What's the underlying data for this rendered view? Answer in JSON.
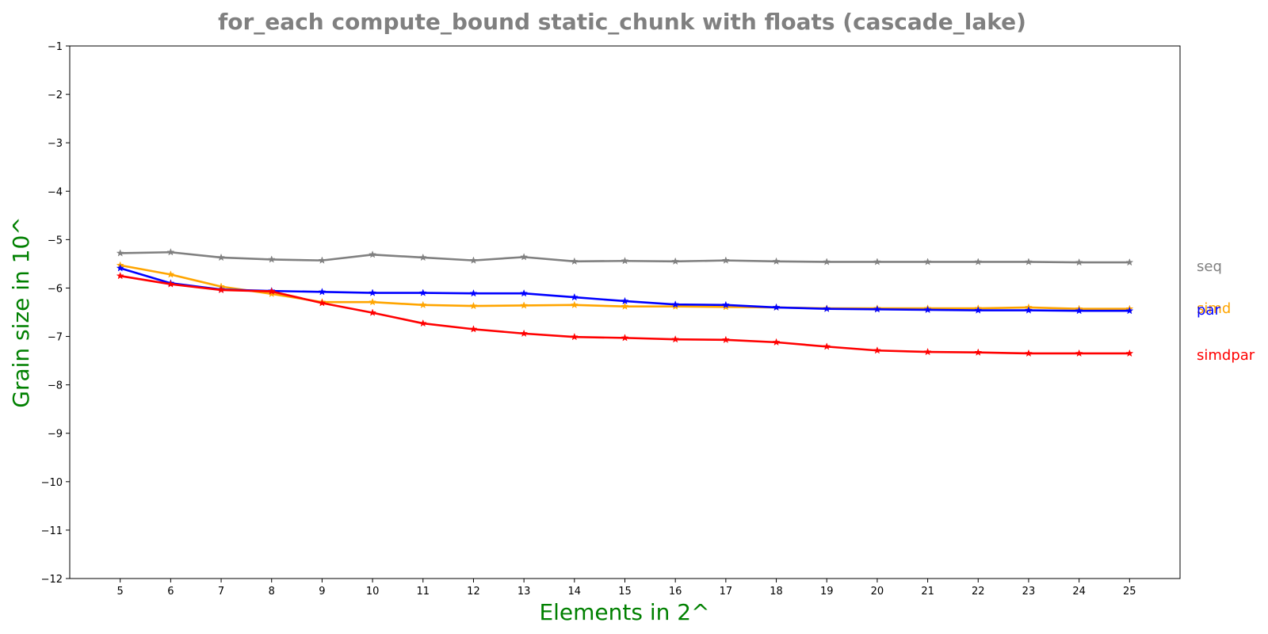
{
  "chart_data": {
    "type": "line",
    "title": "for_each compute_bound static_chunk with floats  (cascade_lake)",
    "xlabel": "Elements in 2^",
    "ylabel": "Grain size in 10^",
    "x": [
      5,
      6,
      7,
      8,
      9,
      10,
      11,
      12,
      13,
      14,
      15,
      16,
      17,
      18,
      19,
      20,
      21,
      22,
      23,
      24,
      25
    ],
    "xlim": [
      4,
      26
    ],
    "ylim": [
      -12,
      -1
    ],
    "xticks": [
      5,
      6,
      7,
      8,
      9,
      10,
      11,
      12,
      13,
      14,
      15,
      16,
      17,
      18,
      19,
      20,
      21,
      22,
      23,
      24,
      25
    ],
    "yticks": [
      -12,
      -11,
      -10,
      -9,
      -8,
      -7,
      -6,
      -5,
      -4,
      -3,
      -2,
      -1
    ],
    "grid": false,
    "legend_placement": "right-outside",
    "series": [
      {
        "name": "seq",
        "color": "#808080",
        "values": [
          -5.28,
          -5.26,
          -5.37,
          -5.41,
          -5.43,
          -5.31,
          -5.37,
          -5.43,
          -5.36,
          -5.45,
          -5.44,
          -5.45,
          -5.43,
          -5.45,
          -5.46,
          -5.46,
          -5.46,
          -5.46,
          -5.46,
          -5.47,
          -5.47
        ],
        "label_y": -5.55
      },
      {
        "name": "simd",
        "color": "#FFA500",
        "values": [
          -5.53,
          -5.72,
          -5.97,
          -6.12,
          -6.29,
          -6.29,
          -6.35,
          -6.37,
          -6.36,
          -6.35,
          -6.38,
          -6.38,
          -6.39,
          -6.4,
          -6.42,
          -6.42,
          -6.42,
          -6.42,
          -6.4,
          -6.43,
          -6.43
        ],
        "label_y": -6.42
      },
      {
        "name": "par",
        "color": "#0000FF",
        "values": [
          -5.59,
          -5.9,
          -6.03,
          -6.06,
          -6.08,
          -6.1,
          -6.1,
          -6.11,
          -6.11,
          -6.19,
          -6.27,
          -6.34,
          -6.35,
          -6.4,
          -6.43,
          -6.44,
          -6.45,
          -6.46,
          -6.46,
          -6.47,
          -6.47
        ],
        "label_y": -6.45
      },
      {
        "name": "simdpar",
        "color": "#FF0000",
        "values": [
          -5.75,
          -5.92,
          -6.04,
          -6.07,
          -6.31,
          -6.51,
          -6.73,
          -6.85,
          -6.94,
          -7.01,
          -7.03,
          -7.06,
          -7.07,
          -7.12,
          -7.21,
          -7.29,
          -7.32,
          -7.33,
          -7.35,
          -7.35,
          -7.35
        ],
        "label_y": -7.38
      }
    ]
  }
}
